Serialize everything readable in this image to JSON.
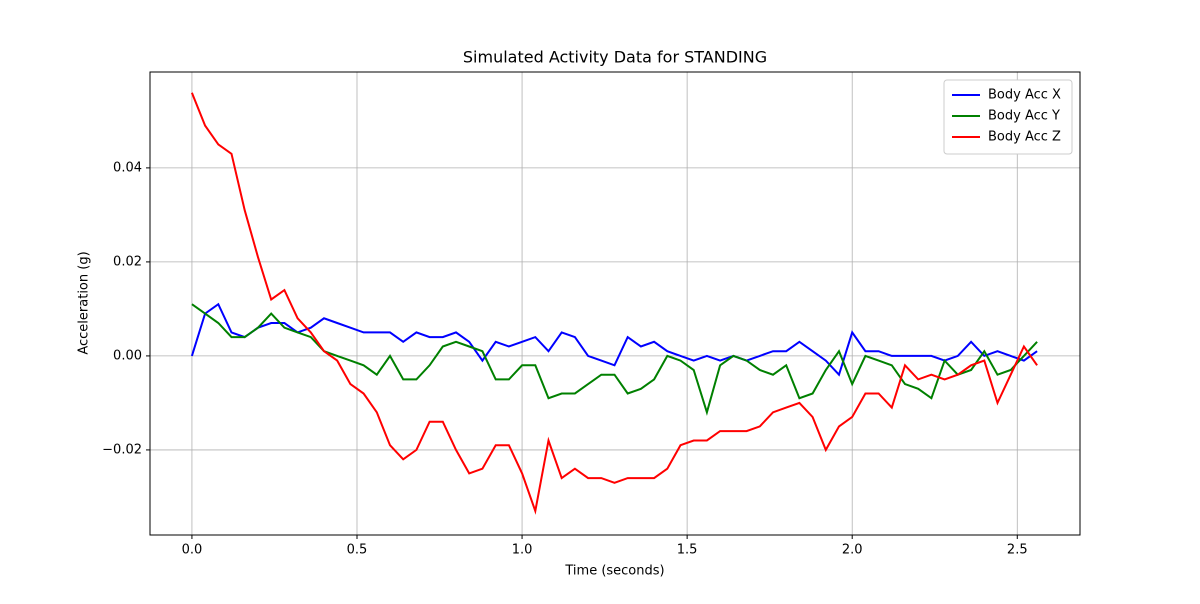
{
  "chart_data": {
    "type": "line",
    "title": "Simulated Activity Data for STANDING",
    "x_label": "Time (seconds)",
    "y_label": "Acceleration (g)",
    "x": [
      0,
      0.04,
      0.08,
      0.12,
      0.16,
      0.2,
      0.24,
      0.28,
      0.32,
      0.36,
      0.4,
      0.44,
      0.48,
      0.52,
      0.56,
      0.6,
      0.64,
      0.68,
      0.72,
      0.76,
      0.8,
      0.84,
      0.88,
      0.92,
      0.96,
      1.0,
      1.04,
      1.08,
      1.12,
      1.16,
      1.2,
      1.24,
      1.28,
      1.32,
      1.36,
      1.4,
      1.44,
      1.48,
      1.52,
      1.56,
      1.6,
      1.64,
      1.68,
      1.72,
      1.76,
      1.8,
      1.84,
      1.88,
      1.92,
      1.96,
      2.0,
      2.04,
      2.08,
      2.12,
      2.16,
      2.2,
      2.24,
      2.28,
      2.32,
      2.36,
      2.4,
      2.44,
      2.48,
      2.52,
      2.56
    ],
    "series": [
      {
        "name": "Body Acc X",
        "color": "#0000ff",
        "values": [
          0.0,
          0.009,
          0.011,
          0.005,
          0.004,
          0.006,
          0.007,
          0.007,
          0.005,
          0.006,
          0.008,
          0.007,
          0.006,
          0.005,
          0.005,
          0.005,
          0.003,
          0.005,
          0.004,
          0.004,
          0.005,
          0.003,
          -0.001,
          0.003,
          0.002,
          0.003,
          0.004,
          0.001,
          0.005,
          0.004,
          0.0,
          -0.001,
          -0.002,
          0.004,
          0.002,
          0.003,
          0.001,
          0.0,
          -0.001,
          0.0,
          -0.001,
          0.0,
          -0.001,
          0.0,
          0.001,
          0.001,
          0.003,
          0.001,
          -0.001,
          -0.004,
          0.005,
          0.001,
          0.001,
          0.0,
          0.0,
          0.0,
          0.0,
          -0.001,
          0.0,
          0.003,
          0.0,
          0.001,
          0.0,
          -0.001,
          0.001
        ]
      },
      {
        "name": "Body Acc Y",
        "color": "#008000",
        "values": [
          0.011,
          0.009,
          0.007,
          0.004,
          0.004,
          0.006,
          0.009,
          0.006,
          0.005,
          0.004,
          0.001,
          0.0,
          -0.001,
          -0.002,
          -0.004,
          0.0,
          -0.005,
          -0.005,
          -0.002,
          0.002,
          0.003,
          0.002,
          0.001,
          -0.005,
          -0.005,
          -0.002,
          -0.002,
          -0.009,
          -0.008,
          -0.008,
          -0.006,
          -0.004,
          -0.004,
          -0.008,
          -0.007,
          -0.005,
          0.0,
          -0.001,
          -0.003,
          -0.012,
          -0.002,
          0.0,
          -0.001,
          -0.003,
          -0.004,
          -0.002,
          -0.009,
          -0.008,
          -0.003,
          0.001,
          -0.006,
          0.0,
          -0.001,
          -0.002,
          -0.006,
          -0.007,
          -0.009,
          -0.001,
          -0.004,
          -0.003,
          0.001,
          -0.004,
          -0.003,
          0.0,
          0.003
        ]
      },
      {
        "name": "Body Acc Z",
        "color": "#ff0000",
        "values": [
          0.056,
          0.049,
          0.045,
          0.043,
          0.031,
          0.021,
          0.012,
          0.014,
          0.008,
          0.005,
          0.001,
          -0.001,
          -0.006,
          -0.008,
          -0.012,
          -0.019,
          -0.022,
          -0.02,
          -0.014,
          -0.014,
          -0.02,
          -0.025,
          -0.024,
          -0.019,
          -0.019,
          -0.025,
          -0.033,
          -0.018,
          -0.026,
          -0.024,
          -0.026,
          -0.026,
          -0.027,
          -0.026,
          -0.026,
          -0.026,
          -0.024,
          -0.019,
          -0.018,
          -0.018,
          -0.016,
          -0.016,
          -0.016,
          -0.015,
          -0.012,
          -0.011,
          -0.01,
          -0.013,
          -0.02,
          -0.015,
          -0.013,
          -0.008,
          -0.008,
          -0.011,
          -0.002,
          -0.005,
          -0.004,
          -0.005,
          -0.004,
          -0.002,
          -0.001,
          -0.01,
          -0.004,
          0.002,
          -0.002
        ]
      }
    ],
    "xlim": [
      -0.127,
      2.69
    ],
    "ylim": [
      -0.0381,
      0.0604
    ],
    "xticks": [
      {
        "value": 0,
        "label": "0.0"
      },
      0.5,
      {
        "value": 1,
        "label": "1.0"
      },
      1.5,
      {
        "value": 2,
        "label": "2.0"
      },
      2.5
    ],
    "yticks": [
      {
        "value": -0.02,
        "label": "−0.02"
      },
      {
        "value": 0,
        "label": "0.00"
      },
      0.02,
      0.04
    ],
    "grid": true,
    "legend": "upper right"
  }
}
